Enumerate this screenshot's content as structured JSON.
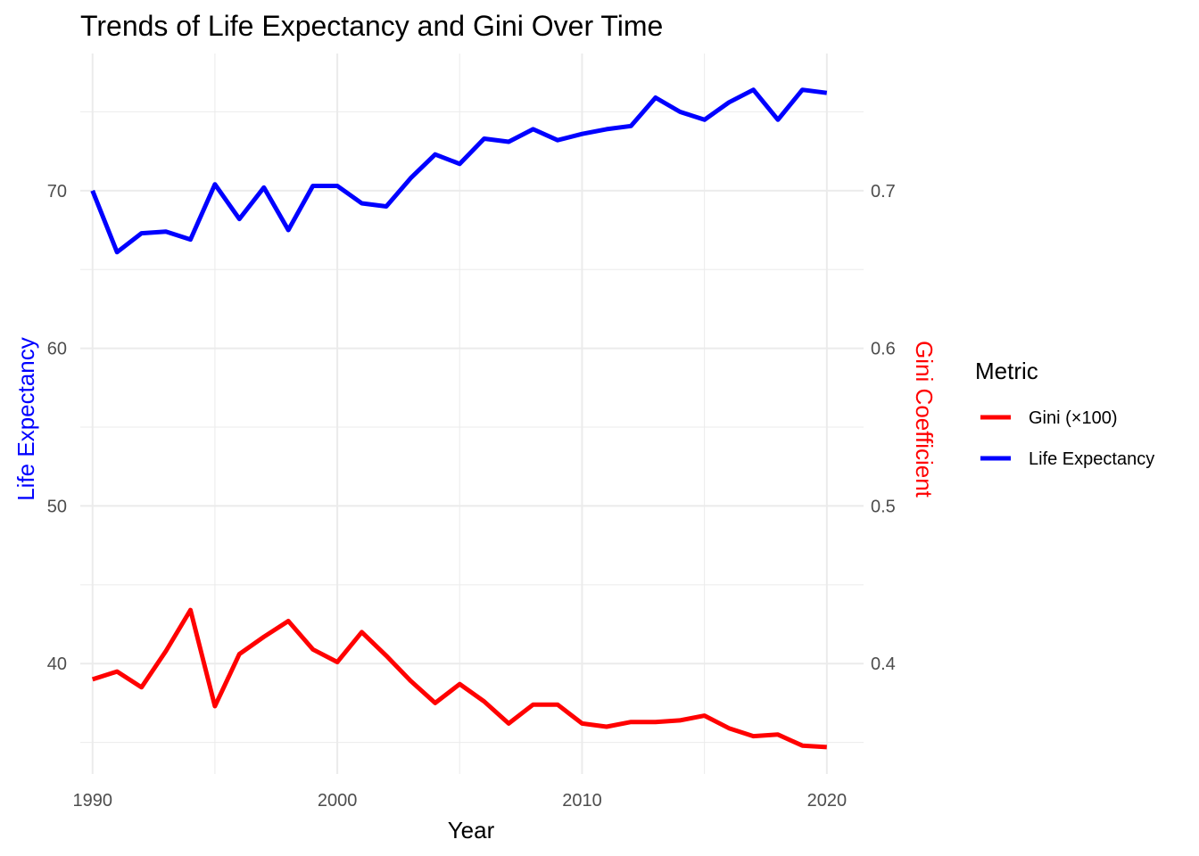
{
  "chart_data": {
    "type": "line",
    "title": "Trends of Life Expectancy and Gini Over Time",
    "xlabel": "Year",
    "ylabel": "Life Expectancy",
    "ylabel_right": "Gini Coefficient",
    "x_ticks": [
      "1990",
      "2000",
      "2010",
      "2020"
    ],
    "y_ticks": [
      "40",
      "50",
      "60",
      "70"
    ],
    "y_right_ticks": [
      "0.4",
      "0.5",
      "0.6",
      "0.7"
    ],
    "xlim": [
      1989.5,
      2021.5
    ],
    "ylim": [
      33,
      78.7
    ],
    "grid": true,
    "legend": {
      "title": "Metric",
      "position": "right"
    },
    "x": [
      1990,
      1991,
      1992,
      1993,
      1994,
      1995,
      1996,
      1997,
      1998,
      1999,
      2000,
      2001,
      2002,
      2003,
      2004,
      2005,
      2006,
      2007,
      2008,
      2009,
      2010,
      2011,
      2012,
      2013,
      2014,
      2015,
      2016,
      2017,
      2018,
      2019,
      2020
    ],
    "series": [
      {
        "name": "Gini (×100)",
        "color": "#ff0000",
        "values": [
          39.0,
          39.5,
          38.5,
          40.8,
          43.4,
          37.3,
          40.6,
          41.7,
          42.7,
          40.9,
          40.1,
          42.0,
          40.5,
          38.9,
          37.5,
          38.7,
          37.6,
          36.2,
          37.4,
          37.4,
          36.2,
          36.0,
          36.3,
          36.3,
          36.4,
          36.7,
          35.9,
          35.4,
          35.5,
          34.8,
          34.7
        ]
      },
      {
        "name": "Life Expectancy",
        "color": "#0000ff",
        "values": [
          70.0,
          66.1,
          67.3,
          67.4,
          66.9,
          70.4,
          68.2,
          70.2,
          67.5,
          70.3,
          70.3,
          69.2,
          69.0,
          70.8,
          72.3,
          71.7,
          73.3,
          73.1,
          73.9,
          73.2,
          73.6,
          73.9,
          74.1,
          75.9,
          75.0,
          74.5,
          75.6,
          76.4,
          74.5,
          76.4,
          76.2
        ]
      }
    ]
  }
}
